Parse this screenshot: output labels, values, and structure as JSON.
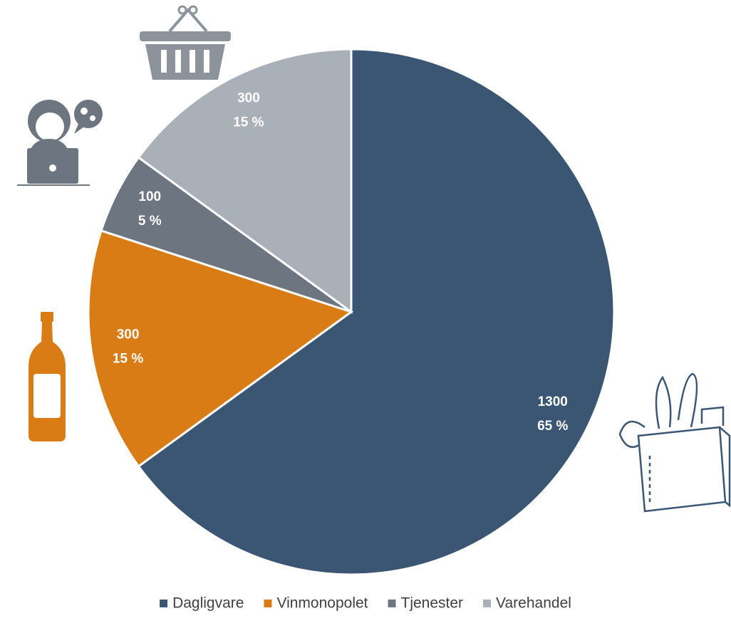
{
  "chart_data": {
    "type": "pie",
    "categories": [
      "Dagligvare",
      "Vinmonopolet",
      "Tjenester",
      "Varehandel"
    ],
    "values": [
      1300,
      300,
      100,
      300
    ],
    "share_labels": [
      "65 %",
      "15 %",
      "5 %",
      "15 %"
    ],
    "colors": [
      "#3b5673",
      "#d97c16",
      "#6d7580",
      "#a9b0b8"
    ],
    "legend": "bottom"
  }
}
